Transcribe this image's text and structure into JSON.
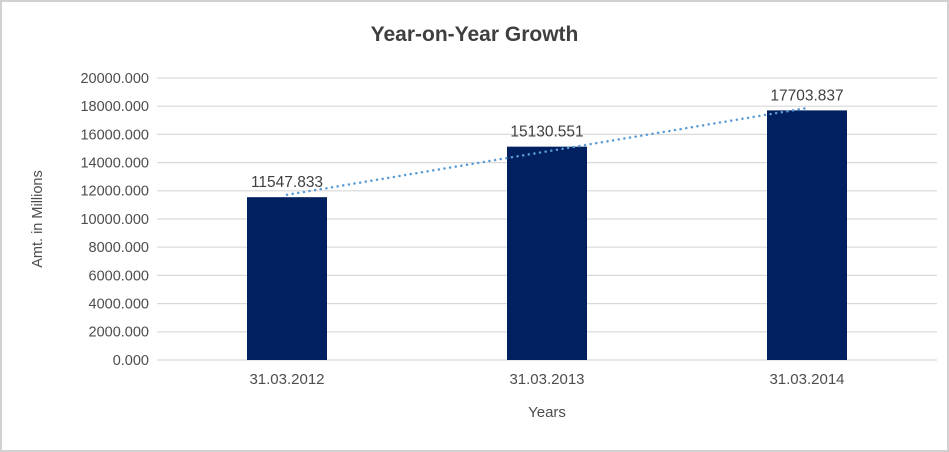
{
  "chart_data": {
    "type": "bar",
    "title": "Year-on-Year Growth",
    "xlabel": "Years",
    "ylabel": "Amt. in Millions",
    "categories": [
      "31.03.2012",
      "31.03.2013",
      "31.03.2014"
    ],
    "values": [
      11547.833,
      15130.551,
      17703.837
    ],
    "data_labels": [
      "11547.833",
      "15130.551",
      "17703.837"
    ],
    "ylim": [
      0,
      20000
    ],
    "y_tick_step": 2000,
    "y_tick_labels": [
      "0.000",
      "2000.000",
      "4000.000",
      "6000.000",
      "8000.000",
      "10000.000",
      "12000.000",
      "14000.000",
      "16000.000",
      "18000.000",
      "20000.000"
    ],
    "grid": true,
    "legend": "none",
    "trendline": {
      "kind": "linear",
      "style": "dotted",
      "fitted_values": [
        11716.07,
        14794.07,
        17872.08
      ]
    },
    "colors": {
      "bar": "#002060",
      "trendline": "#5b9bd5",
      "gridline": "#d9d9d9",
      "title_text": "#3f3f3f",
      "axis_text": "#4d4d4d",
      "label_text": "#404040",
      "background": "#ffffff",
      "border": "#d1d1d1"
    }
  }
}
